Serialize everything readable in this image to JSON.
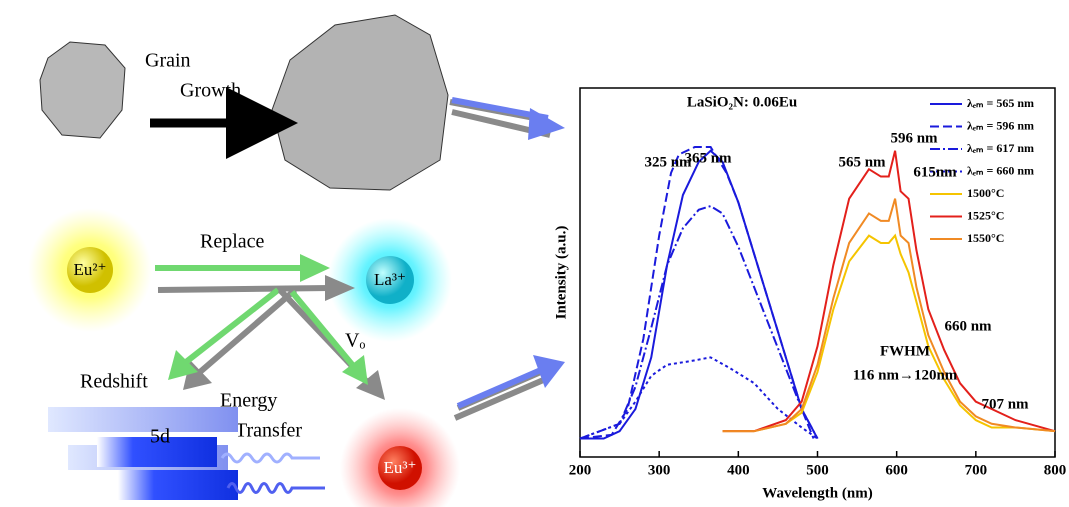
{
  "diagram": {
    "grain": "Grain",
    "growth": "Growth",
    "replace": "Replace",
    "eu2": "Eu²⁺",
    "la3": "La³⁺",
    "eu3": "Eu³⁺",
    "vo": "Vₒ",
    "redshift": "Redshift",
    "energy": "Energy",
    "transfer": "Transfer",
    "level": "5d"
  },
  "chart_data": {
    "type": "line",
    "title": "LaSiO₂N: 0.06Eu",
    "x_label": "Wavelength (nm)",
    "y_label": "Intensity (a.u.)",
    "xlim": [
      200,
      800
    ],
    "xticks": [
      200,
      300,
      400,
      500,
      600,
      700,
      800
    ],
    "ylim": [
      0,
      1
    ],
    "series": [
      {
        "name": "λₑₘ = 565 nm",
        "color": "#1a1adc",
        "dash": "solid",
        "x": [
          200,
          230,
          250,
          270,
          290,
          310,
          330,
          350,
          365,
          380,
          400,
          420,
          440,
          460,
          480,
          500
        ],
        "values": [
          0.05,
          0.05,
          0.07,
          0.13,
          0.27,
          0.52,
          0.71,
          0.8,
          0.83,
          0.8,
          0.69,
          0.55,
          0.41,
          0.27,
          0.13,
          0.05
        ]
      },
      {
        "name": "λₑₘ = 596 nm",
        "color": "#1a1adc",
        "dash": "dashed",
        "x": [
          200,
          240,
          260,
          280,
          300,
          315,
          325,
          345,
          365,
          385,
          400,
          420,
          440,
          460,
          480,
          495
        ],
        "values": [
          0.05,
          0.06,
          0.13,
          0.32,
          0.6,
          0.77,
          0.82,
          0.84,
          0.84,
          0.77,
          0.69,
          0.55,
          0.41,
          0.27,
          0.13,
          0.05
        ]
      },
      {
        "name": "λₑₘ = 617 nm",
        "color": "#1a1adc",
        "dash": "dashdot",
        "x": [
          200,
          250,
          270,
          290,
          310,
          330,
          350,
          365,
          380,
          400,
          420,
          440,
          460,
          480,
          500
        ],
        "values": [
          0.05,
          0.09,
          0.19,
          0.35,
          0.52,
          0.62,
          0.67,
          0.68,
          0.66,
          0.57,
          0.46,
          0.35,
          0.24,
          0.13,
          0.05
        ]
      },
      {
        "name": "λₑₘ = 660 nm",
        "color": "#1a1adc",
        "dash": "dotted",
        "x": [
          200,
          250,
          270,
          290,
          310,
          340,
          365,
          390,
          420,
          450,
          480,
          500
        ],
        "values": [
          0.05,
          0.09,
          0.15,
          0.22,
          0.25,
          0.26,
          0.27,
          0.24,
          0.2,
          0.13,
          0.08,
          0.05
        ]
      },
      {
        "name": "1500°C",
        "color": "#f5c400",
        "dash": "solid",
        "x": [
          380,
          420,
          460,
          480,
          500,
          520,
          540,
          565,
          580,
          590,
          598,
          605,
          615,
          625,
          640,
          660,
          680,
          700,
          720,
          750,
          800
        ],
        "values": [
          0.07,
          0.07,
          0.09,
          0.12,
          0.23,
          0.4,
          0.53,
          0.6,
          0.58,
          0.58,
          0.6,
          0.55,
          0.5,
          0.42,
          0.3,
          0.21,
          0.14,
          0.1,
          0.08,
          0.08,
          0.07
        ]
      },
      {
        "name": "1525°C",
        "color": "#e3201b",
        "dash": "solid",
        "x": [
          380,
          420,
          460,
          480,
          500,
          520,
          540,
          565,
          580,
          590,
          598,
          605,
          615,
          625,
          640,
          660,
          680,
          700,
          720,
          750,
          800
        ],
        "values": [
          0.07,
          0.07,
          0.1,
          0.15,
          0.3,
          0.52,
          0.7,
          0.78,
          0.76,
          0.76,
          0.83,
          0.72,
          0.7,
          0.56,
          0.4,
          0.29,
          0.2,
          0.15,
          0.13,
          0.1,
          0.07
        ]
      },
      {
        "name": "1550°C",
        "color": "#f08a24",
        "dash": "solid",
        "x": [
          380,
          420,
          460,
          480,
          500,
          520,
          540,
          565,
          580,
          590,
          598,
          605,
          615,
          625,
          640,
          660,
          680,
          700,
          720,
          750,
          800
        ],
        "values": [
          0.07,
          0.07,
          0.09,
          0.13,
          0.25,
          0.43,
          0.58,
          0.66,
          0.64,
          0.64,
          0.7,
          0.6,
          0.58,
          0.46,
          0.33,
          0.23,
          0.15,
          0.11,
          0.09,
          0.08,
          0.07
        ]
      }
    ],
    "annotations": [
      "325 nm",
      "365 nm",
      "565 nm",
      "596 nm",
      "615nm",
      "660 nm",
      "707 nm",
      "FWHM",
      "116 nm→120nm"
    ]
  }
}
